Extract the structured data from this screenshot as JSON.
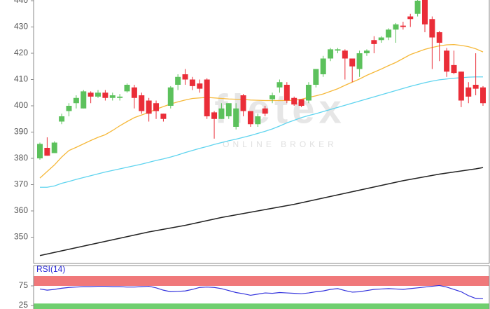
{
  "chart_data": [
    {
      "type": "candlestick",
      "ylim": [
        340,
        440
      ],
      "yticks": [
        350,
        360,
        370,
        380,
        390,
        400,
        410,
        420,
        430,
        440
      ],
      "up_color": "#5cc15c",
      "down_color": "#ea2d38",
      "watermark": [
        "fletex",
        "ONLINE BROKER"
      ],
      "candles": {
        "open": [
          380,
          384,
          382,
          394,
          398,
          401,
          399,
          405,
          403.5,
          405,
          403,
          403,
          405.5,
          407,
          404,
          402,
          401,
          397,
          400,
          408,
          412,
          410,
          408.5,
          410,
          397.5,
          395,
          396,
          392,
          404,
          398,
          393,
          399,
          402.5,
          407,
          408,
          403,
          402.5,
          402,
          408,
          412,
          418,
          421,
          421,
          418,
          414,
          420,
          425,
          425,
          426,
          429,
          430.5,
          434,
          435,
          441,
          433,
          428,
          421,
          415.5,
          413,
          407,
          408,
          407
        ],
        "high": [
          386,
          388,
          386.5,
          397,
          401,
          404,
          406,
          405.5,
          406,
          406,
          405,
          404.5,
          408.5,
          408,
          405,
          403,
          402,
          397,
          407.5,
          412,
          414,
          411,
          410,
          410.5,
          398,
          401,
          401,
          401,
          404.5,
          398,
          397,
          400,
          405,
          410,
          409,
          403.5,
          402.5,
          409,
          414,
          419,
          422,
          422,
          421.5,
          418,
          421,
          421.5,
          426.5,
          426.5,
          429.5,
          431.5,
          432,
          435,
          441,
          441,
          434,
          428.5,
          422,
          421,
          413,
          409,
          420,
          407.5
        ],
        "low": [
          379.5,
          381,
          382,
          393,
          396,
          399,
          399,
          401,
          403,
          402,
          402,
          402,
          405,
          399,
          397,
          394,
          395,
          394,
          399,
          406,
          408,
          406,
          405,
          395,
          387.5,
          395,
          395,
          391,
          396,
          392,
          392,
          396,
          401,
          405,
          401,
          400,
          399.5,
          401,
          407,
          411,
          417,
          420,
          410,
          409,
          411,
          419,
          420,
          424,
          425,
          424,
          429,
          430,
          434,
          428,
          414,
          417,
          411,
          412,
          399.5,
          401,
          404,
          400
        ],
        "close": [
          385.5,
          381,
          386,
          396,
          400,
          403,
          405.5,
          403.5,
          405,
          403,
          404,
          403.5,
          408,
          403,
          398,
          397,
          398,
          395,
          407,
          411,
          410,
          407.5,
          406.5,
          396,
          395,
          399,
          401,
          399,
          398,
          393,
          396,
          397,
          404,
          409,
          402,
          400.5,
          400,
          408,
          414,
          418,
          421.5,
          421.5,
          418,
          415,
          420,
          421,
          423.5,
          426,
          429,
          431,
          430,
          433,
          440,
          431,
          426,
          424,
          413,
          412.5,
          402,
          403.5,
          406.5,
          401
        ]
      },
      "series": [
        {
          "color": "#f6b93b",
          "values": [
            372.5,
            375,
            377.5,
            380.5,
            383,
            384.2,
            385.5,
            386.8,
            388,
            389,
            390.6,
            392.4,
            394,
            395.5,
            396.5,
            397.5,
            398.7,
            399.7,
            400.7,
            401.5,
            402.2,
            402.8,
            403,
            403.2,
            403,
            402.8,
            402.6,
            402.5,
            402.4,
            402.2,
            402.1,
            402,
            402,
            402,
            402,
            402.1,
            402.5,
            403.2,
            403.8,
            404.5,
            405.5,
            406.5,
            407.8,
            409,
            410.2,
            411.6,
            412.8,
            414,
            415.3,
            416.5,
            418,
            419.5,
            420.5,
            421.5,
            422.2,
            422.8,
            423.2,
            423.3,
            423,
            422.5,
            421.7,
            420.5
          ]
        },
        {
          "color": "#5fd4ef",
          "values": [
            369,
            369,
            369.5,
            370.5,
            371.2,
            372,
            372.7,
            373.4,
            374.1,
            374.8,
            375.4,
            376,
            376.6,
            377.2,
            377.8,
            378.5,
            379.2,
            379.8,
            380.5,
            381.3,
            382.2,
            383,
            383.8,
            384.5,
            385.3,
            386,
            386.7,
            387.3,
            388,
            388.7,
            389.5,
            390.3,
            391.2,
            392.3,
            393.5,
            394.5,
            395.5,
            396.3,
            397,
            397.8,
            398.6,
            399.4,
            400.2,
            401,
            401.8,
            402.6,
            403.4,
            404.2,
            405,
            405.8,
            406.6,
            407.4,
            408.1,
            408.8,
            409.4,
            409.9,
            410.2,
            410.5,
            410.7,
            410.9,
            411,
            411
          ]
        },
        {
          "color": "#222222",
          "values": [
            343,
            343.6,
            344.2,
            344.8,
            345.4,
            346,
            346.6,
            347.2,
            347.8,
            348.4,
            349,
            349.6,
            350.2,
            350.8,
            351.4,
            352,
            352.5,
            353,
            353.5,
            354,
            354.5,
            355.1,
            355.7,
            356.3,
            356.9,
            357.5,
            358,
            358.5,
            359,
            359.5,
            360,
            360.5,
            361,
            361.5,
            362,
            362.5,
            363.1,
            363.7,
            364.3,
            364.9,
            365.5,
            366.1,
            366.7,
            367.3,
            367.9,
            368.5,
            369.1,
            369.7,
            370.3,
            370.9,
            371.5,
            372,
            372.5,
            373,
            373.5,
            374,
            374.4,
            374.8,
            375.2,
            375.6,
            376,
            376.5
          ]
        }
      ]
    },
    {
      "type": "line",
      "title": "RSI(14)",
      "ylim": [
        16,
        100
      ],
      "yticks": [
        25,
        75
      ],
      "bands": [
        {
          "from": 75,
          "to": 100,
          "color": "#f0787a"
        },
        {
          "from": 0,
          "to": 30,
          "color": "#6fcf6f"
        }
      ],
      "series": [
        {
          "color": "#3333dd",
          "values": [
            67,
            64,
            66,
            69,
            71,
            72,
            73,
            73,
            74,
            74,
            73,
            73,
            72,
            72,
            73,
            74,
            70,
            64,
            60,
            61,
            62,
            66,
            71,
            72,
            71,
            68,
            63,
            58,
            55,
            51,
            54,
            57,
            56,
            58,
            57,
            56,
            55,
            57,
            60,
            62,
            66,
            68,
            63,
            59,
            60,
            63,
            66,
            67,
            68,
            67,
            66,
            68,
            70,
            72,
            74,
            76,
            72,
            66,
            60,
            50,
            43,
            42
          ]
        }
      ]
    }
  ]
}
